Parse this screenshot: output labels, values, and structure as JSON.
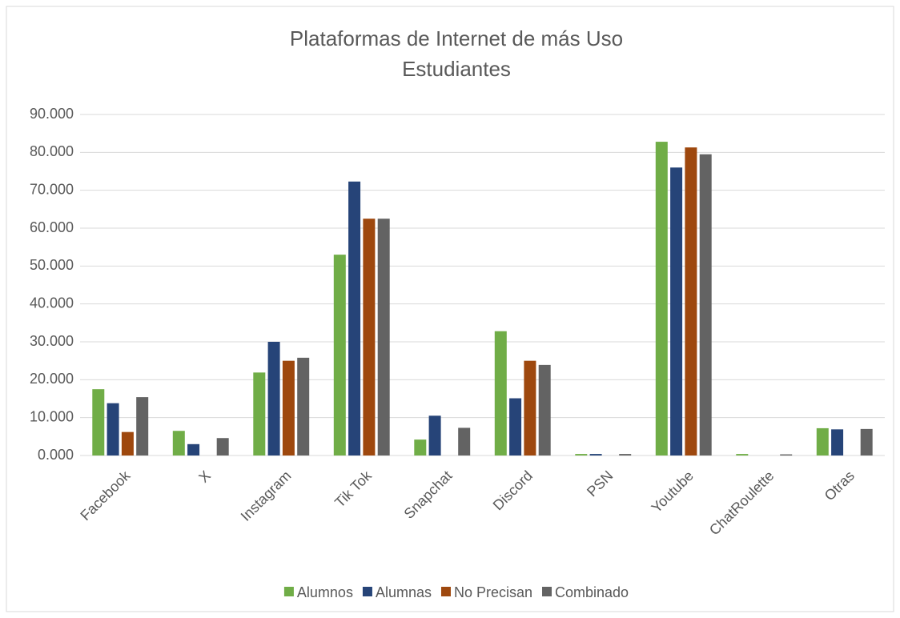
{
  "chart_data": {
    "type": "bar",
    "title": "Plataformas de Internet de más Uso",
    "subtitle": "Estudiantes",
    "categories": [
      "Facebook",
      "X",
      "Instagram",
      "Tik Tok",
      "Snapchat",
      "Discord",
      "PSN",
      "Youtube",
      "ChatRoulette",
      "Otras"
    ],
    "series": [
      {
        "name": "Alumnos",
        "color": "#70ad47",
        "values": [
          17.5,
          6.5,
          21.9,
          53.0,
          4.2,
          32.8,
          0.4,
          82.8,
          0.4,
          7.2
        ]
      },
      {
        "name": "Alumnas",
        "color": "#264478",
        "values": [
          13.8,
          3.0,
          30.0,
          72.3,
          10.5,
          15.1,
          0.4,
          76.0,
          0,
          6.9
        ]
      },
      {
        "name": "No Precisan",
        "color": "#9e480e",
        "values": [
          6.2,
          0,
          25.0,
          62.5,
          0,
          25.0,
          0,
          81.3,
          0,
          0
        ]
      },
      {
        "name": "Combinado",
        "color": "#636363",
        "values": [
          15.4,
          4.6,
          25.8,
          62.5,
          7.3,
          23.9,
          0.4,
          79.5,
          0.3,
          7.0
        ]
      }
    ],
    "ylim": [
      0,
      90
    ],
    "yticks": [
      {
        "value": 0,
        "label": "0.000"
      },
      {
        "value": 10,
        "label": "10.000"
      },
      {
        "value": 20,
        "label": "20.000"
      },
      {
        "value": 30,
        "label": "30.000"
      },
      {
        "value": 40,
        "label": "40.000"
      },
      {
        "value": 50,
        "label": "50.000"
      },
      {
        "value": 60,
        "label": "60.000"
      },
      {
        "value": 70,
        "label": "70.000"
      },
      {
        "value": 80,
        "label": "80.000"
      },
      {
        "value": 90,
        "label": "90.000"
      }
    ],
    "grid": true,
    "legend": "bottom"
  }
}
